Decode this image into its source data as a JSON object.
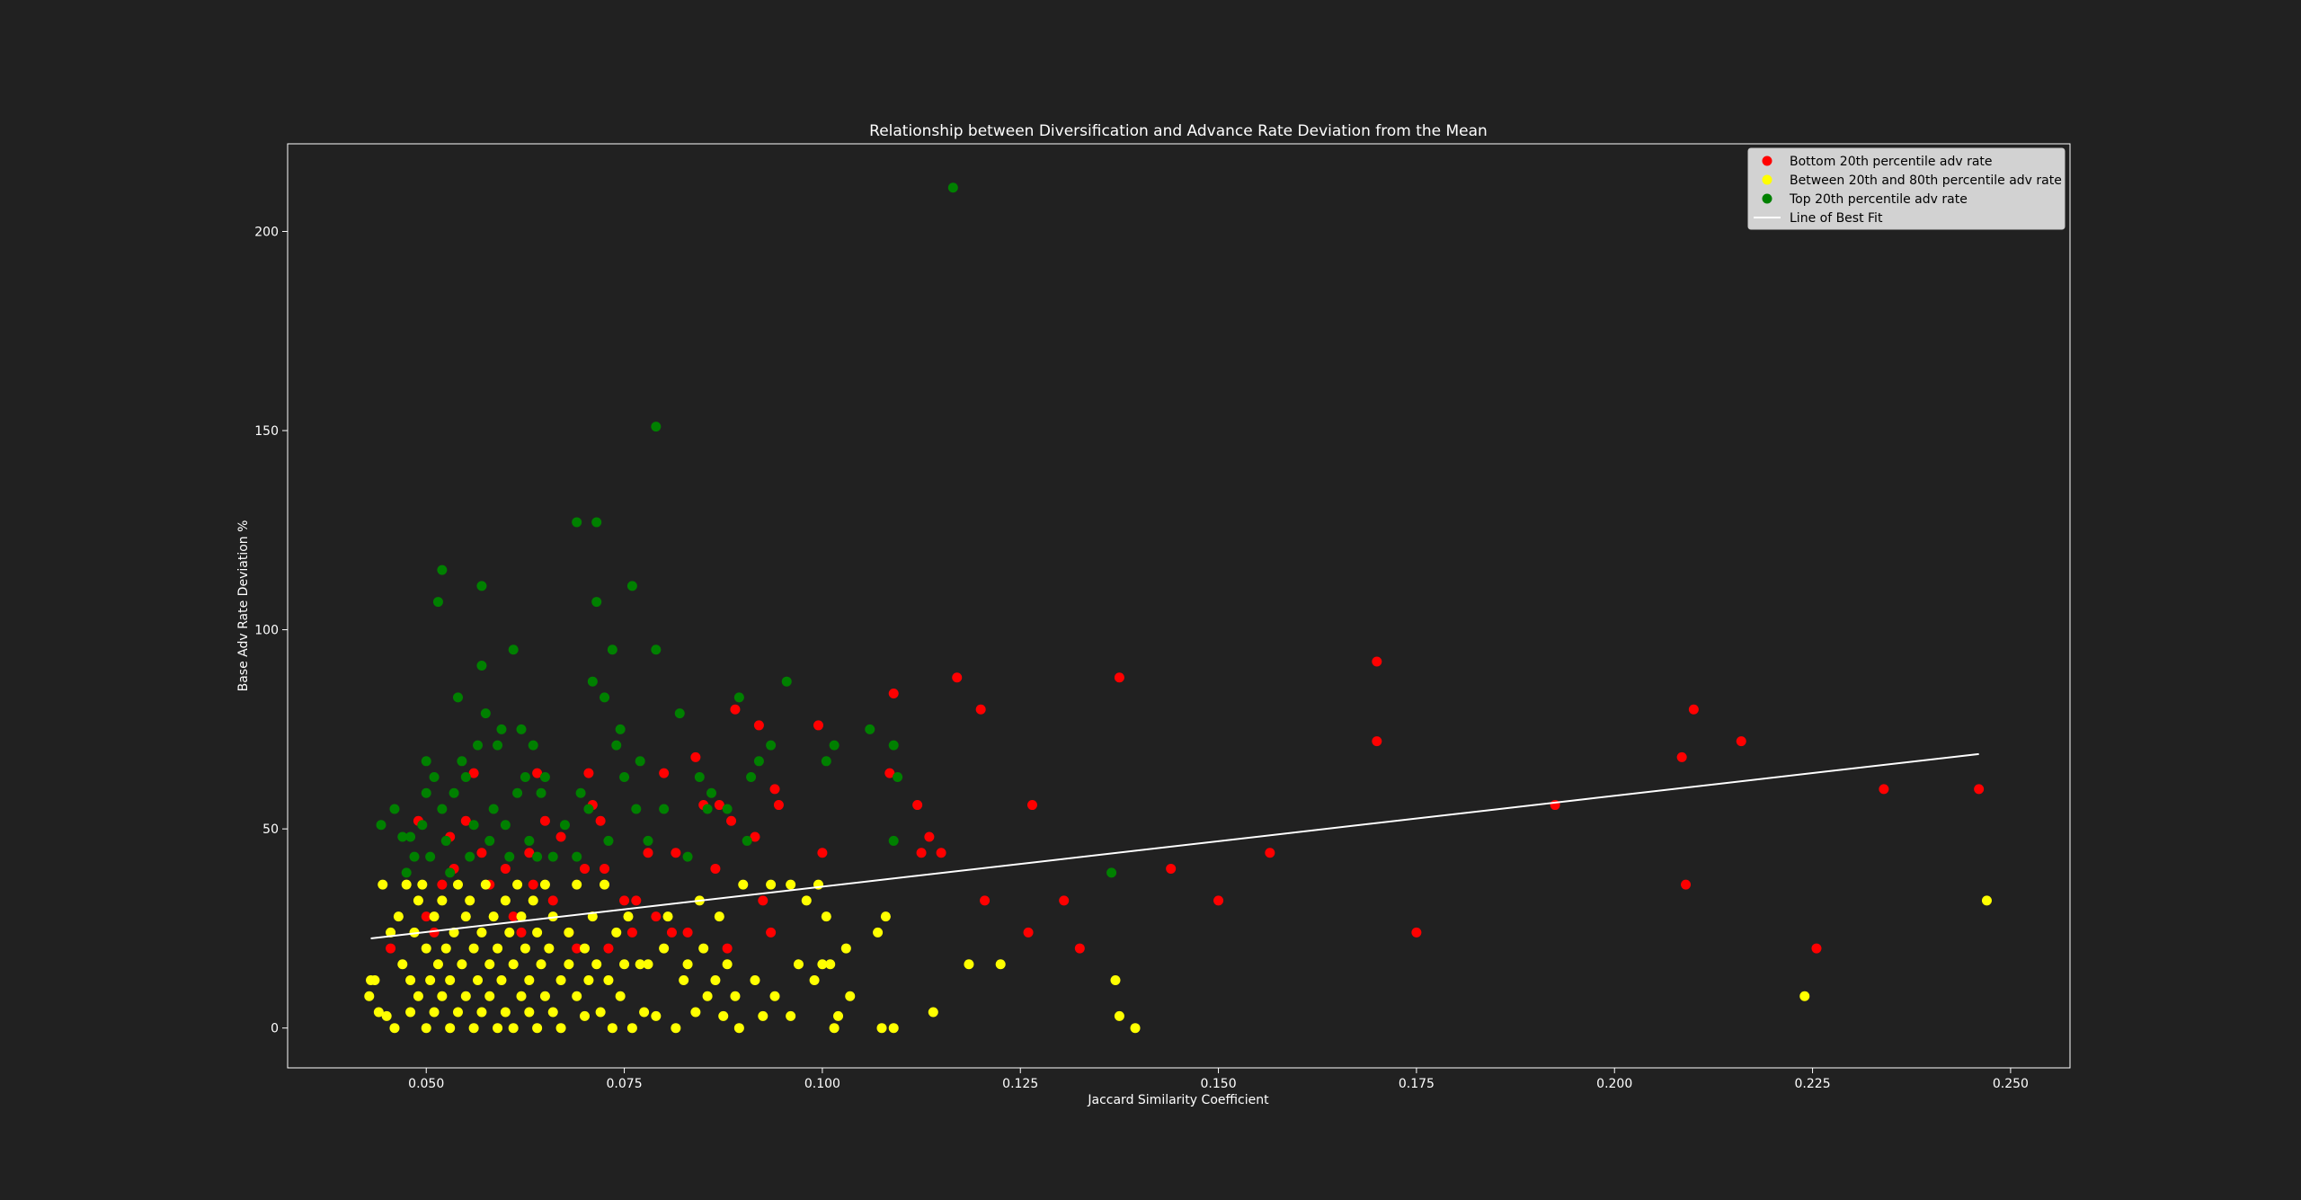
{
  "chart_data": {
    "type": "scatter",
    "title": "Relationship between Diversification and Advance Rate Deviation from the Mean",
    "xlabel": "Jaccard Similarity Coefficient",
    "ylabel": "Base Adv Rate Deviation %",
    "xlim": [
      0.0325,
      0.2575
    ],
    "ylim": [
      -10,
      222
    ],
    "xticks": [
      0.05,
      0.075,
      0.1,
      0.125,
      0.15,
      0.175,
      0.2,
      0.225,
      0.25
    ],
    "xtick_labels": [
      "0.050",
      "0.075",
      "0.100",
      "0.125",
      "0.150",
      "0.175",
      "0.200",
      "0.225",
      "0.250"
    ],
    "yticks": [
      0,
      50,
      100,
      150,
      200
    ],
    "ytick_labels": [
      "0",
      "50",
      "100",
      "150",
      "200"
    ],
    "grid": false,
    "legend_position": "top-right",
    "background": "#212121",
    "series": [
      {
        "name": "Bottom 20th percentile adv rate",
        "color": "#ff0000",
        "points": [
          [
            0.0455,
            20
          ],
          [
            0.049,
            52
          ],
          [
            0.05,
            28
          ],
          [
            0.051,
            24
          ],
          [
            0.052,
            36
          ],
          [
            0.053,
            48
          ],
          [
            0.0535,
            40
          ],
          [
            0.055,
            52
          ],
          [
            0.056,
            64
          ],
          [
            0.057,
            44
          ],
          [
            0.058,
            36
          ],
          [
            0.06,
            40
          ],
          [
            0.061,
            28
          ],
          [
            0.062,
            24
          ],
          [
            0.063,
            44
          ],
          [
            0.0635,
            36
          ],
          [
            0.064,
            64
          ],
          [
            0.065,
            52
          ],
          [
            0.066,
            32
          ],
          [
            0.067,
            48
          ],
          [
            0.068,
            24
          ],
          [
            0.069,
            20
          ],
          [
            0.07,
            40
          ],
          [
            0.0705,
            64
          ],
          [
            0.071,
            56
          ],
          [
            0.072,
            52
          ],
          [
            0.0725,
            40
          ],
          [
            0.073,
            20
          ],
          [
            0.075,
            32
          ],
          [
            0.076,
            24
          ],
          [
            0.0765,
            32
          ],
          [
            0.078,
            44
          ],
          [
            0.079,
            28
          ],
          [
            0.08,
            64
          ],
          [
            0.081,
            24
          ],
          [
            0.0815,
            44
          ],
          [
            0.083,
            24
          ],
          [
            0.084,
            68
          ],
          [
            0.085,
            56
          ],
          [
            0.0865,
            40
          ],
          [
            0.087,
            56
          ],
          [
            0.088,
            20
          ],
          [
            0.089,
            80
          ],
          [
            0.0885,
            52
          ],
          [
            0.0915,
            48
          ],
          [
            0.092,
            76
          ],
          [
            0.0925,
            32
          ],
          [
            0.0935,
            24
          ],
          [
            0.094,
            60
          ],
          [
            0.0945,
            56
          ],
          [
            0.0995,
            76
          ],
          [
            0.1,
            44
          ],
          [
            0.1085,
            64
          ],
          [
            0.109,
            84
          ],
          [
            0.112,
            56
          ],
          [
            0.1125,
            44
          ],
          [
            0.1135,
            48
          ],
          [
            0.115,
            44
          ],
          [
            0.117,
            88
          ],
          [
            0.12,
            80
          ],
          [
            0.1205,
            32
          ],
          [
            0.126,
            24
          ],
          [
            0.1265,
            56
          ],
          [
            0.1305,
            32
          ],
          [
            0.1325,
            20
          ],
          [
            0.1375,
            88
          ],
          [
            0.144,
            40
          ],
          [
            0.15,
            32
          ],
          [
            0.1565,
            44
          ],
          [
            0.17,
            92
          ],
          [
            0.17,
            72
          ],
          [
            0.175,
            24
          ],
          [
            0.1925,
            56
          ],
          [
            0.2085,
            68
          ],
          [
            0.209,
            36
          ],
          [
            0.21,
            80
          ],
          [
            0.216,
            72
          ],
          [
            0.2255,
            20
          ],
          [
            0.234,
            60
          ],
          [
            0.246,
            60
          ]
        ]
      },
      {
        "name": "Between 20th and 80th percentile adv rate",
        "color": "#ffff00",
        "points": [
          [
            0.0428,
            8
          ],
          [
            0.043,
            12
          ],
          [
            0.0435,
            12
          ],
          [
            0.044,
            4
          ],
          [
            0.0445,
            36
          ],
          [
            0.045,
            3
          ],
          [
            0.0455,
            24
          ],
          [
            0.046,
            0
          ],
          [
            0.0465,
            28
          ],
          [
            0.047,
            16
          ],
          [
            0.0475,
            36
          ],
          [
            0.048,
            12
          ],
          [
            0.048,
            4
          ],
          [
            0.0485,
            24
          ],
          [
            0.049,
            32
          ],
          [
            0.049,
            8
          ],
          [
            0.0495,
            36
          ],
          [
            0.05,
            20
          ],
          [
            0.05,
            0
          ],
          [
            0.0505,
            12
          ],
          [
            0.051,
            28
          ],
          [
            0.051,
            4
          ],
          [
            0.0515,
            16
          ],
          [
            0.052,
            32
          ],
          [
            0.052,
            8
          ],
          [
            0.0525,
            20
          ],
          [
            0.053,
            0
          ],
          [
            0.053,
            12
          ],
          [
            0.0535,
            24
          ],
          [
            0.054,
            36
          ],
          [
            0.054,
            4
          ],
          [
            0.0545,
            16
          ],
          [
            0.055,
            28
          ],
          [
            0.055,
            8
          ],
          [
            0.0555,
            32
          ],
          [
            0.056,
            0
          ],
          [
            0.056,
            20
          ],
          [
            0.0565,
            12
          ],
          [
            0.057,
            24
          ],
          [
            0.057,
            4
          ],
          [
            0.0575,
            36
          ],
          [
            0.058,
            16
          ],
          [
            0.058,
            8
          ],
          [
            0.0585,
            28
          ],
          [
            0.059,
            0
          ],
          [
            0.059,
            20
          ],
          [
            0.0595,
            12
          ],
          [
            0.06,
            32
          ],
          [
            0.06,
            4
          ],
          [
            0.0605,
            24
          ],
          [
            0.061,
            16
          ],
          [
            0.061,
            0
          ],
          [
            0.0615,
            36
          ],
          [
            0.062,
            8
          ],
          [
            0.062,
            28
          ],
          [
            0.0625,
            20
          ],
          [
            0.063,
            12
          ],
          [
            0.063,
            4
          ],
          [
            0.0635,
            32
          ],
          [
            0.064,
            24
          ],
          [
            0.064,
            0
          ],
          [
            0.0645,
            16
          ],
          [
            0.065,
            36
          ],
          [
            0.065,
            8
          ],
          [
            0.0655,
            20
          ],
          [
            0.066,
            28
          ],
          [
            0.066,
            4
          ],
          [
            0.067,
            12
          ],
          [
            0.067,
            0
          ],
          [
            0.068,
            24
          ],
          [
            0.068,
            16
          ],
          [
            0.069,
            8
          ],
          [
            0.069,
            36
          ],
          [
            0.07,
            20
          ],
          [
            0.07,
            3
          ],
          [
            0.0705,
            12
          ],
          [
            0.071,
            28
          ],
          [
            0.0715,
            16
          ],
          [
            0.072,
            4
          ],
          [
            0.0725,
            36
          ],
          [
            0.073,
            12
          ],
          [
            0.0735,
            0
          ],
          [
            0.074,
            24
          ],
          [
            0.0745,
            8
          ],
          [
            0.075,
            16
          ],
          [
            0.0755,
            28
          ],
          [
            0.076,
            0
          ],
          [
            0.077,
            16
          ],
          [
            0.0775,
            4
          ],
          [
            0.078,
            16
          ],
          [
            0.079,
            3
          ],
          [
            0.08,
            20
          ],
          [
            0.0805,
            28
          ],
          [
            0.0815,
            0
          ],
          [
            0.0825,
            12
          ],
          [
            0.083,
            16
          ],
          [
            0.084,
            4
          ],
          [
            0.0845,
            32
          ],
          [
            0.085,
            20
          ],
          [
            0.0855,
            8
          ],
          [
            0.0865,
            12
          ],
          [
            0.087,
            28
          ],
          [
            0.0875,
            3
          ],
          [
            0.088,
            16
          ],
          [
            0.089,
            8
          ],
          [
            0.0895,
            0
          ],
          [
            0.09,
            36
          ],
          [
            0.0915,
            12
          ],
          [
            0.0925,
            3
          ],
          [
            0.0935,
            36
          ],
          [
            0.094,
            8
          ],
          [
            0.096,
            3
          ],
          [
            0.096,
            36
          ],
          [
            0.097,
            16
          ],
          [
            0.098,
            32
          ],
          [
            0.099,
            12
          ],
          [
            0.0995,
            36
          ],
          [
            0.1,
            16
          ],
          [
            0.1005,
            28
          ],
          [
            0.101,
            16
          ],
          [
            0.1015,
            0
          ],
          [
            0.102,
            3
          ],
          [
            0.103,
            20
          ],
          [
            0.1035,
            8
          ],
          [
            0.107,
            24
          ],
          [
            0.1075,
            0
          ],
          [
            0.108,
            28
          ],
          [
            0.109,
            0
          ],
          [
            0.114,
            4
          ],
          [
            0.1185,
            16
          ],
          [
            0.1225,
            16
          ],
          [
            0.137,
            12
          ],
          [
            0.1375,
            3
          ],
          [
            0.1395,
            0
          ],
          [
            0.224,
            8
          ],
          [
            0.247,
            32
          ]
        ]
      },
      {
        "name": "Top 20th percentile adv rate",
        "color": "#008000",
        "points": [
          [
            0.0443,
            51
          ],
          [
            0.046,
            55
          ],
          [
            0.047,
            48
          ],
          [
            0.0475,
            39
          ],
          [
            0.048,
            48
          ],
          [
            0.0485,
            43
          ],
          [
            0.0495,
            51
          ],
          [
            0.05,
            59
          ],
          [
            0.05,
            67
          ],
          [
            0.0505,
            43
          ],
          [
            0.051,
            63
          ],
          [
            0.0515,
            107
          ],
          [
            0.052,
            115
          ],
          [
            0.052,
            55
          ],
          [
            0.0525,
            47
          ],
          [
            0.053,
            39
          ],
          [
            0.0535,
            59
          ],
          [
            0.054,
            83
          ],
          [
            0.0545,
            67
          ],
          [
            0.055,
            63
          ],
          [
            0.0555,
            43
          ],
          [
            0.056,
            51
          ],
          [
            0.0565,
            71
          ],
          [
            0.057,
            91
          ],
          [
            0.057,
            111
          ],
          [
            0.0575,
            79
          ],
          [
            0.058,
            47
          ],
          [
            0.0585,
            55
          ],
          [
            0.059,
            71
          ],
          [
            0.0595,
            75
          ],
          [
            0.06,
            51
          ],
          [
            0.0605,
            43
          ],
          [
            0.061,
            95
          ],
          [
            0.0615,
            59
          ],
          [
            0.062,
            75
          ],
          [
            0.0625,
            63
          ],
          [
            0.063,
            47
          ],
          [
            0.0635,
            71
          ],
          [
            0.064,
            43
          ],
          [
            0.0645,
            59
          ],
          [
            0.065,
            63
          ],
          [
            0.066,
            43
          ],
          [
            0.0675,
            51
          ],
          [
            0.069,
            43
          ],
          [
            0.069,
            127
          ],
          [
            0.0695,
            59
          ],
          [
            0.0705,
            55
          ],
          [
            0.071,
            87
          ],
          [
            0.0715,
            107
          ],
          [
            0.0715,
            127
          ],
          [
            0.0725,
            83
          ],
          [
            0.073,
            47
          ],
          [
            0.0735,
            95
          ],
          [
            0.074,
            71
          ],
          [
            0.0745,
            75
          ],
          [
            0.075,
            63
          ],
          [
            0.076,
            111
          ],
          [
            0.0765,
            55
          ],
          [
            0.077,
            67
          ],
          [
            0.078,
            47
          ],
          [
            0.079,
            151
          ],
          [
            0.079,
            95
          ],
          [
            0.08,
            55
          ],
          [
            0.082,
            79
          ],
          [
            0.083,
            43
          ],
          [
            0.0845,
            63
          ],
          [
            0.0855,
            55
          ],
          [
            0.086,
            59
          ],
          [
            0.088,
            55
          ],
          [
            0.0895,
            83
          ],
          [
            0.0905,
            47
          ],
          [
            0.091,
            63
          ],
          [
            0.092,
            67
          ],
          [
            0.0935,
            71
          ],
          [
            0.0955,
            87
          ],
          [
            0.1005,
            67
          ],
          [
            0.1015,
            71
          ],
          [
            0.106,
            75
          ],
          [
            0.109,
            71
          ],
          [
            0.1095,
            63
          ],
          [
            0.109,
            47
          ],
          [
            0.1165,
            211
          ],
          [
            0.1365,
            39
          ]
        ]
      }
    ],
    "fit_line": {
      "name": "Line of Best Fit",
      "color": "#ffffff",
      "x": [
        0.043,
        0.246
      ],
      "y": [
        22.5,
        68.8
      ]
    }
  }
}
